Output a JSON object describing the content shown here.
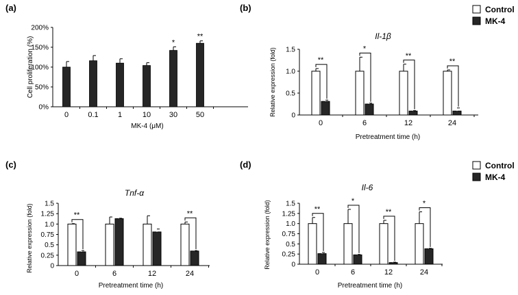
{
  "chart_data": [
    {
      "panel_label": "(a)",
      "type": "bar",
      "title": "",
      "xlabel": "MK-4 (μM)",
      "ylabel": "Cell proliferation (%)",
      "ylim": [
        0,
        200
      ],
      "yticks": [
        "0%",
        "50%",
        "100%",
        "150%",
        "200%"
      ],
      "categories": [
        "0",
        "0.1",
        "1",
        "10",
        "30",
        "50"
      ],
      "series": [
        {
          "name": "MK-4",
          "values": [
            100,
            116,
            110,
            104,
            142,
            160
          ],
          "errors": [
            14,
            13,
            11,
            7,
            9,
            6
          ]
        }
      ],
      "significance": [
        "",
        "",
        "",
        "",
        "*",
        "**"
      ]
    },
    {
      "panel_label": "(b)",
      "type": "bar",
      "title": "Il-1β",
      "xlabel": "Pretreatment time (h)",
      "ylabel": "Relative expression (fold)",
      "ylim": [
        0,
        1.5
      ],
      "yticks": [
        "0",
        "0.5",
        "1.0",
        "1.5"
      ],
      "categories": [
        "0",
        "6",
        "12",
        "24"
      ],
      "series": [
        {
          "name": "Control",
          "values": [
            1.0,
            1.0,
            1.0,
            1.0
          ],
          "errors": [
            0.06,
            0.32,
            0.16,
            0.03
          ]
        },
        {
          "name": "MK-4",
          "values": [
            0.31,
            0.25,
            0.09,
            0.09
          ],
          "errors": [
            0.03,
            0.02,
            0.01,
            0.07
          ]
        }
      ],
      "significance": [
        "**",
        "*",
        "**",
        "**"
      ],
      "legend": [
        "Control",
        "MK-4"
      ]
    },
    {
      "panel_label": "(c)",
      "type": "bar",
      "title": "Tnf-α",
      "xlabel": "Pretreatment time (h)",
      "ylabel": "Relative expression (fold)",
      "ylim": [
        0,
        1.5
      ],
      "yticks": [
        "0",
        "0.25",
        "0.5",
        "0.75",
        "1.0",
        "1.25",
        "1.5"
      ],
      "categories": [
        "0",
        "6",
        "12",
        "24"
      ],
      "series": [
        {
          "name": "Control",
          "values": [
            1.0,
            1.0,
            1.0,
            1.0
          ],
          "errors": [
            0.01,
            0.17,
            0.2,
            0.05
          ]
        },
        {
          "name": "MK-4",
          "values": [
            0.33,
            1.13,
            0.81,
            0.35
          ],
          "errors": [
            0.03,
            0.01,
            0.07,
            0.01
          ]
        }
      ],
      "significance": [
        "**",
        "",
        "",
        "**"
      ]
    },
    {
      "panel_label": "(d)",
      "type": "bar",
      "title": "Il-6",
      "xlabel": "Pretreatment time (h)",
      "ylabel": "Relative expression (fold)",
      "ylim": [
        0,
        1.5
      ],
      "yticks": [
        "0",
        "0.25",
        "0.5",
        "0.75",
        "1.0",
        "1.25",
        "1.5"
      ],
      "categories": [
        "0",
        "6",
        "12",
        "24"
      ],
      "series": [
        {
          "name": "Control",
          "values": [
            1.0,
            1.0,
            1.0,
            1.0
          ],
          "errors": [
            0.15,
            0.35,
            0.08,
            0.29
          ]
        },
        {
          "name": "MK-4",
          "values": [
            0.26,
            0.23,
            0.04,
            0.38
          ],
          "errors": [
            0.03,
            0.01,
            0.01,
            0.01
          ]
        }
      ],
      "significance": [
        "**",
        "*",
        "**",
        "*"
      ],
      "legend": [
        "Control",
        "MK-4"
      ]
    }
  ],
  "colors": {
    "control_fill": "#ffffff",
    "mk4_fill": "#262626",
    "axis": "#000000"
  }
}
